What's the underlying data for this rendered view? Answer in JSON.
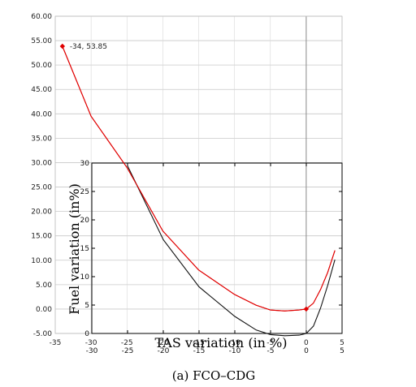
{
  "chart_data": [
    {
      "type": "line",
      "title": "",
      "xlim": [
        -35,
        5
      ],
      "ylim": [
        -5,
        60
      ],
      "x_ticks": [
        "-35",
        "-30",
        "-25",
        "-20",
        "-15",
        "-10",
        "-5",
        "0",
        "5"
      ],
      "y_ticks": [
        "-5.00",
        "0.00",
        "5.00",
        "10.00",
        "15.00",
        "20.00",
        "25.00",
        "30.00",
        "35.00",
        "40.00",
        "45.00",
        "50.00",
        "55.00",
        "60.00"
      ],
      "grid": true,
      "series": [
        {
          "color": "#e00000",
          "x": [
            -34,
            -30,
            -25,
            -20,
            -15,
            -10,
            -7,
            -5,
            -3,
            -1,
            0,
            1,
            2,
            3,
            4
          ],
          "y": [
            53.85,
            39.5,
            29.0,
            16.0,
            8.0,
            3.0,
            0.8,
            -0.2,
            -0.4,
            -0.2,
            0.0,
            1.2,
            4.0,
            7.5,
            12.0
          ]
        }
      ],
      "highlight_points": [
        {
          "x": -34,
          "y": 53.85,
          "label": "-34, 53.85"
        },
        {
          "x": 0,
          "y": 0,
          "label": ""
        }
      ]
    },
    {
      "type": "line",
      "xlabel": "TAS variation (in %)",
      "ylabel": "Fuel variation (in%)",
      "xlim": [
        -30,
        5
      ],
      "ylim": [
        0,
        30
      ],
      "x_ticks": [
        "-30",
        "-25",
        "-20",
        "-15",
        "-10",
        "-5",
        "0",
        "5"
      ],
      "y_ticks": [
        "0",
        "5",
        "10",
        "15",
        "20",
        "25",
        "30"
      ],
      "series": [
        {
          "color": "#111111",
          "x": [
            -25,
            -20,
            -15,
            -10,
            -7,
            -5,
            -3,
            -1,
            0,
            1,
            2,
            3,
            4
          ],
          "y": [
            29.5,
            16.5,
            8.2,
            3.0,
            0.6,
            -0.2,
            -0.4,
            -0.3,
            0.0,
            1.3,
            4.5,
            8.5,
            13.0
          ]
        }
      ]
    }
  ],
  "caption": "(a) FCO–CDG"
}
